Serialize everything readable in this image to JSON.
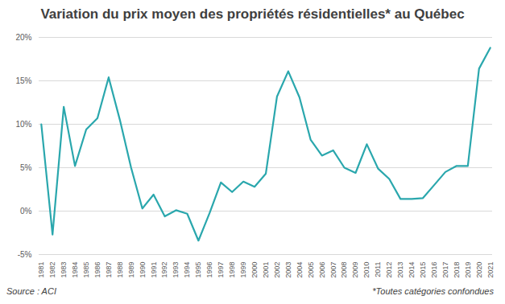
{
  "chart_data": {
    "type": "line",
    "title": "Variation du prix moyen des propriétés résidentielles* au Québec",
    "source": "Source : ACI",
    "footnote": "*Toutes catégories confondues",
    "categories": [
      "1981",
      "1982",
      "1983",
      "1984",
      "1985",
      "1986",
      "1987",
      "1988",
      "1989",
      "1990",
      "1991",
      "1992",
      "1993",
      "1994",
      "1995",
      "1996",
      "1997",
      "1998",
      "1999",
      "2000",
      "2001",
      "2002",
      "2003",
      "2004",
      "2005",
      "2006",
      "2007",
      "2008",
      "2009",
      "2010",
      "2011",
      "2012",
      "2013",
      "2014",
      "2015",
      "2016",
      "2017",
      "2018",
      "2019",
      "2020",
      "2021"
    ],
    "values": [
      10.0,
      -2.7,
      12.0,
      5.2,
      9.4,
      10.7,
      15.4,
      10.5,
      5.0,
      0.3,
      1.9,
      -0.6,
      0.1,
      -0.3,
      -3.4,
      -0.2,
      3.3,
      2.2,
      3.4,
      2.8,
      4.3,
      13.2,
      16.1,
      13.1,
      8.2,
      6.4,
      7.0,
      5.0,
      4.4,
      7.7,
      4.9,
      3.7,
      1.4,
      1.4,
      1.5,
      3.0,
      4.5,
      5.2,
      5.2,
      16.4,
      18.8
    ],
    "color": "#2aa7ad",
    "ylim": [
      -5,
      20
    ],
    "yticks": [
      {
        "value": -5,
        "label": "-5%"
      },
      {
        "value": 0,
        "label": "0%"
      },
      {
        "value": 5,
        "label": "5%"
      },
      {
        "value": 10,
        "label": "10%"
      },
      {
        "value": 15,
        "label": "15%"
      },
      {
        "value": 20,
        "label": "20%"
      }
    ],
    "grid": true
  }
}
